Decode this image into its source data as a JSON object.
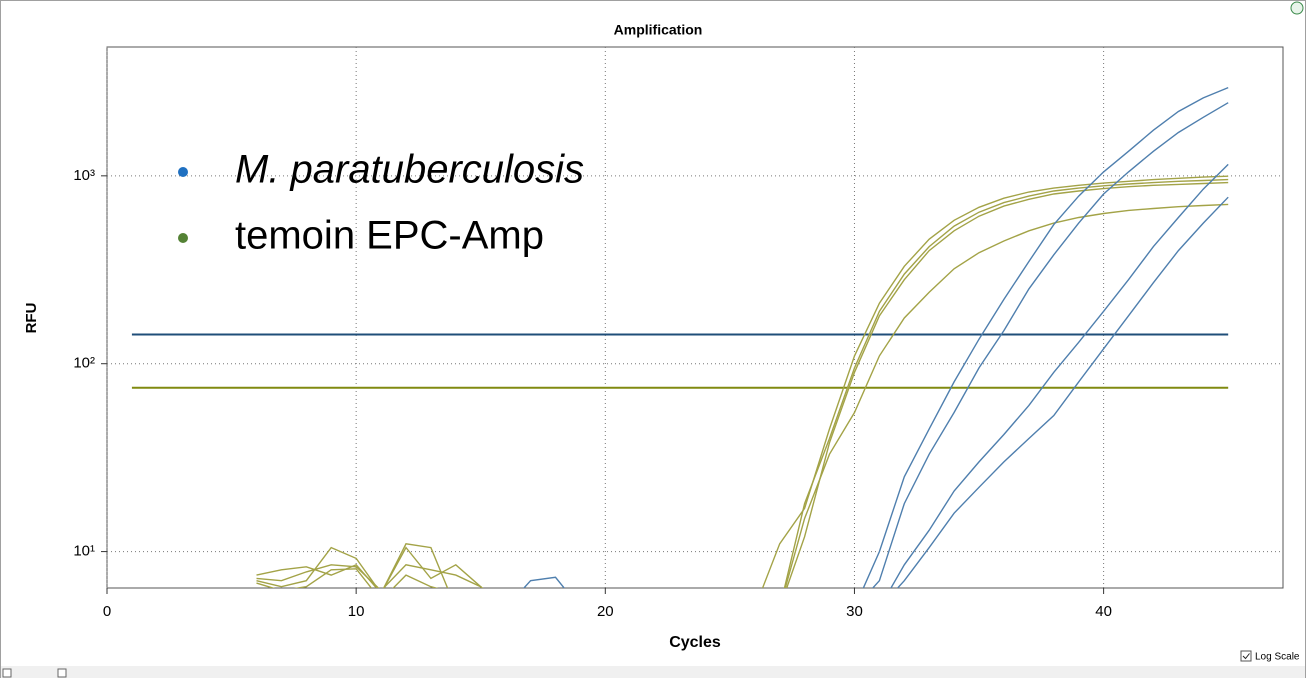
{
  "chart_data": {
    "type": "line",
    "title": "Amplification",
    "xlabel": "Cycles",
    "ylabel": "RFU",
    "yscale": "log",
    "grid": true,
    "log_scale_label": "Log Scale",
    "xlim": [
      0,
      47.2
    ],
    "ylim": [
      6.4,
      4850
    ],
    "xticks": [
      0,
      10,
      20,
      30,
      40
    ],
    "yticks": [
      {
        "value": 10,
        "label": "10¹"
      },
      {
        "value": 100,
        "label": "10²"
      },
      {
        "value": 1000,
        "label": "10³"
      }
    ],
    "legend": [
      {
        "label": "M. paratuberculosis",
        "color": "#1f70c1"
      },
      {
        "label": "temoin EPC-Amp",
        "color": "#548235"
      }
    ],
    "thresholds": [
      {
        "value": 143,
        "color": "#1f4e79"
      },
      {
        "value": 74.5,
        "color": "#808a10"
      }
    ],
    "x": [
      1,
      2,
      3,
      4,
      5,
      6,
      7,
      8,
      9,
      10,
      11,
      12,
      13,
      14,
      15,
      16,
      17,
      18,
      19,
      20,
      21,
      22,
      23,
      24,
      25,
      26,
      27,
      28,
      29,
      30,
      31,
      32,
      33,
      34,
      35,
      36,
      37,
      38,
      39,
      40,
      41,
      42,
      43,
      44,
      45
    ],
    "series": [
      {
        "color": "#a3a347",
        "values": [
          null,
          null,
          null,
          null,
          null,
          7.5,
          8,
          8.3,
          7.5,
          8.5,
          6,
          11,
          10.5,
          5,
          5,
          5,
          5,
          5,
          5,
          5,
          5,
          5,
          5,
          5,
          5,
          5,
          11,
          17,
          45,
          110,
          210,
          330,
          460,
          580,
          680,
          760,
          820,
          860,
          890,
          915,
          935,
          955,
          970,
          985,
          995
        ]
      },
      {
        "color": "#a3a347",
        "values": [
          null,
          null,
          null,
          null,
          null,
          7.2,
          7,
          7.8,
          8.5,
          8.3,
          6.2,
          8.5,
          8,
          7.5,
          6.5,
          5,
          5,
          5,
          5,
          5,
          5,
          5,
          5,
          5,
          5,
          5,
          5,
          18,
          40,
          95,
          190,
          300,
          420,
          540,
          640,
          720,
          780,
          830,
          860,
          885,
          905,
          920,
          935,
          945,
          955
        ]
      },
      {
        "color": "#a3a347",
        "values": [
          null,
          null,
          null,
          null,
          null,
          7,
          6.5,
          7,
          10.5,
          9.2,
          6,
          10.5,
          7.2,
          8.5,
          6.5,
          5,
          5,
          5,
          5,
          5,
          5,
          5,
          5,
          5,
          5,
          5,
          5,
          12,
          38,
          90,
          180,
          280,
          400,
          510,
          610,
          690,
          750,
          800,
          830,
          855,
          875,
          890,
          900,
          910,
          920
        ]
      },
      {
        "color": "#a3a347",
        "values": [
          null,
          null,
          null,
          null,
          null,
          6.8,
          6.2,
          6.5,
          8,
          8.1,
          5.5,
          7.5,
          6.5,
          6,
          5,
          5,
          5,
          5,
          5,
          5,
          5,
          5,
          5,
          5,
          5,
          5,
          5,
          15,
          33,
          55,
          110,
          175,
          240,
          320,
          390,
          450,
          510,
          560,
          600,
          630,
          655,
          670,
          685,
          695,
          705
        ]
      },
      {
        "color": "#4f7fae",
        "values": [
          null,
          null,
          null,
          null,
          null,
          null,
          null,
          null,
          null,
          null,
          null,
          null,
          null,
          null,
          null,
          5,
          7,
          7.3,
          5,
          5,
          5,
          5,
          5,
          5,
          5,
          5,
          5,
          5,
          5,
          5,
          10,
          25,
          45,
          80,
          135,
          220,
          350,
          550,
          780,
          1050,
          1350,
          1750,
          2200,
          2600,
          2950
        ]
      },
      {
        "color": "#4f7fae",
        "values": [
          null,
          null,
          null,
          null,
          null,
          null,
          null,
          null,
          null,
          null,
          null,
          null,
          null,
          null,
          null,
          null,
          null,
          null,
          null,
          null,
          null,
          null,
          null,
          null,
          null,
          null,
          null,
          null,
          null,
          5,
          7,
          18,
          33,
          55,
          95,
          150,
          250,
          380,
          560,
          800,
          1050,
          1350,
          1700,
          2050,
          2450
        ]
      },
      {
        "color": "#4f7fae",
        "values": [
          null,
          null,
          null,
          null,
          null,
          null,
          null,
          null,
          null,
          null,
          null,
          null,
          null,
          null,
          null,
          null,
          null,
          null,
          null,
          null,
          null,
          null,
          null,
          null,
          null,
          null,
          null,
          null,
          null,
          null,
          5,
          8.5,
          13,
          21,
          30,
          42,
          60,
          90,
          130,
          190,
          280,
          420,
          600,
          850,
          1150
        ]
      },
      {
        "color": "#4f7fae",
        "values": [
          null,
          null,
          null,
          null,
          null,
          null,
          null,
          null,
          null,
          null,
          null,
          null,
          null,
          null,
          null,
          null,
          null,
          null,
          null,
          null,
          null,
          null,
          null,
          null,
          null,
          null,
          null,
          null,
          null,
          null,
          5,
          7,
          10.5,
          16,
          22,
          30,
          40,
          53,
          80,
          120,
          180,
          270,
          400,
          560,
          770
        ]
      }
    ]
  }
}
